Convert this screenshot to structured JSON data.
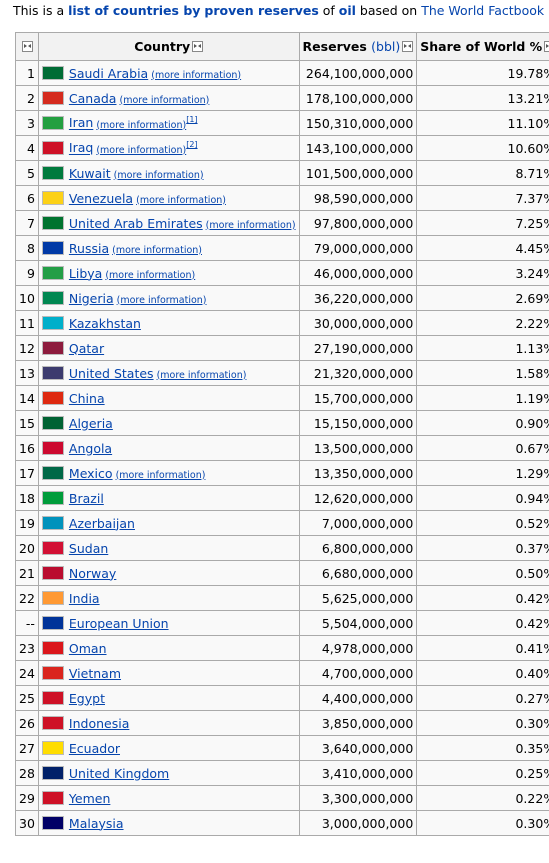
{
  "intro": {
    "prefix": "This is a ",
    "link1": "list of countries by",
    "link2": "proven reserves",
    "mid": " of ",
    "link3": "oil",
    "mid2": " based on ",
    "link4": "The World Factbook"
  },
  "headers": {
    "country": "Country",
    "reserves_bold": "Reserves",
    "reserves_unit": "(bbl)",
    "share": "Share of World %"
  },
  "more_label": "(more information)",
  "rows": [
    {
      "rank": "1",
      "country": "Saudi Arabia",
      "more": true,
      "note": "",
      "reserves": "264,100,000,000",
      "share": "19.78%",
      "flag": "sa"
    },
    {
      "rank": "2",
      "country": "Canada",
      "more": true,
      "note": "",
      "reserves": "178,100,000,000",
      "share": "13.21%",
      "flag": "ca"
    },
    {
      "rank": "3",
      "country": "Iran",
      "more": true,
      "note": "[1]",
      "reserves": "150,310,000,000",
      "share": "11.10%",
      "flag": "ir"
    },
    {
      "rank": "4",
      "country": "Iraq",
      "more": true,
      "note": "[2]",
      "reserves": "143,100,000,000",
      "share": "10.60%",
      "flag": "iq"
    },
    {
      "rank": "5",
      "country": "Kuwait",
      "more": true,
      "note": "",
      "reserves": "101,500,000,000",
      "share": "8.71%",
      "flag": "kw"
    },
    {
      "rank": "6",
      "country": "Venezuela",
      "more": true,
      "note": "",
      "reserves": "98,590,000,000",
      "share": "7.37%",
      "flag": "ve"
    },
    {
      "rank": "7",
      "country": "United Arab Emirates",
      "more": true,
      "note": "",
      "reserves": "97,800,000,000",
      "share": "7.25%",
      "flag": "ae"
    },
    {
      "rank": "8",
      "country": "Russia",
      "more": true,
      "note": "",
      "reserves": "79,000,000,000",
      "share": "4.45%",
      "flag": "ru"
    },
    {
      "rank": "9",
      "country": "Libya",
      "more": true,
      "note": "",
      "reserves": "46,000,000,000",
      "share": "3.24%",
      "flag": "ly"
    },
    {
      "rank": "10",
      "country": "Nigeria",
      "more": true,
      "note": "",
      "reserves": "36,220,000,000",
      "share": "2.69%",
      "flag": "ng"
    },
    {
      "rank": "11",
      "country": "Kazakhstan",
      "more": false,
      "note": "",
      "reserves": "30,000,000,000",
      "share": "2.22%",
      "flag": "kz"
    },
    {
      "rank": "12",
      "country": "Qatar",
      "more": false,
      "note": "",
      "reserves": "27,190,000,000",
      "share": "1.13%",
      "flag": "qa"
    },
    {
      "rank": "13",
      "country": "United States",
      "more": true,
      "note": "",
      "reserves": "21,320,000,000",
      "share": "1.58%",
      "flag": "us"
    },
    {
      "rank": "14",
      "country": "China",
      "more": false,
      "note": "",
      "reserves": "15,700,000,000",
      "share": "1.19%",
      "flag": "cn"
    },
    {
      "rank": "15",
      "country": "Algeria",
      "more": false,
      "note": "",
      "reserves": "15,150,000,000",
      "share": "0.90%",
      "flag": "dz"
    },
    {
      "rank": "16",
      "country": "Angola",
      "more": false,
      "note": "",
      "reserves": "13,500,000,000",
      "share": "0.67%",
      "flag": "ao"
    },
    {
      "rank": "17",
      "country": "Mexico",
      "more": true,
      "note": "",
      "reserves": "13,350,000,000",
      "share": "1.29%",
      "flag": "mx"
    },
    {
      "rank": "18",
      "country": "Brazil",
      "more": false,
      "note": "",
      "reserves": "12,620,000,000",
      "share": "0.94%",
      "flag": "br"
    },
    {
      "rank": "19",
      "country": "Azerbaijan",
      "more": false,
      "note": "",
      "reserves": "7,000,000,000",
      "share": "0.52%",
      "flag": "az"
    },
    {
      "rank": "20",
      "country": "Sudan",
      "more": false,
      "note": "",
      "reserves": "6,800,000,000",
      "share": "0.37%",
      "flag": "sd"
    },
    {
      "rank": "21",
      "country": "Norway",
      "more": false,
      "note": "",
      "reserves": "6,680,000,000",
      "share": "0.50%",
      "flag": "no"
    },
    {
      "rank": "22",
      "country": "India",
      "more": false,
      "note": "",
      "reserves": "5,625,000,000",
      "share": "0.42%",
      "flag": "in"
    },
    {
      "rank": "--",
      "country": "European Union",
      "more": false,
      "note": "",
      "reserves": "5,504,000,000",
      "share": "0.42%",
      "flag": "eu"
    },
    {
      "rank": "23",
      "country": "Oman",
      "more": false,
      "note": "",
      "reserves": "4,978,000,000",
      "share": "0.41%",
      "flag": "om"
    },
    {
      "rank": "24",
      "country": "Vietnam",
      "more": false,
      "note": "",
      "reserves": "4,700,000,000",
      "share": "0.40%",
      "flag": "vn"
    },
    {
      "rank": "25",
      "country": "Egypt",
      "more": false,
      "note": "",
      "reserves": "4,400,000,000",
      "share": "0.27%",
      "flag": "eg"
    },
    {
      "rank": "26",
      "country": "Indonesia",
      "more": false,
      "note": "",
      "reserves": "3,850,000,000",
      "share": "0.30%",
      "flag": "id"
    },
    {
      "rank": "27",
      "country": "Ecuador",
      "more": false,
      "note": "",
      "reserves": "3,640,000,000",
      "share": "0.35%",
      "flag": "ec"
    },
    {
      "rank": "28",
      "country": "United Kingdom",
      "more": false,
      "note": "",
      "reserves": "3,410,000,000",
      "share": "0.25%",
      "flag": "gb"
    },
    {
      "rank": "29",
      "country": "Yemen",
      "more": false,
      "note": "",
      "reserves": "3,300,000,000",
      "share": "0.22%",
      "flag": "ye"
    },
    {
      "rank": "30",
      "country": "Malaysia",
      "more": false,
      "note": "",
      "reserves": "3,000,000,000",
      "share": "0.30%",
      "flag": "my"
    }
  ],
  "flag_colors": {
    "sa": "#006c35",
    "ca": "#d52b1e",
    "ir": "#239f40",
    "iq": "#ce1126",
    "kw": "#007a3d",
    "ve": "#fcd116",
    "ae": "#00732f",
    "ru": "#0039a6",
    "ly": "#239e46",
    "ng": "#008751",
    "kz": "#00afca",
    "qa": "#8d1b3d",
    "us": "#3c3b6e",
    "cn": "#de2910",
    "dz": "#006233",
    "ao": "#cc092f",
    "mx": "#006847",
    "br": "#009c3b",
    "az": "#0092bc",
    "sd": "#d21034",
    "no": "#ba0c2f",
    "in": "#ff9933",
    "eu": "#003399",
    "om": "#db161b",
    "vn": "#da251d",
    "eg": "#ce1126",
    "id": "#ce1126",
    "ec": "#ffdd00",
    "gb": "#012169",
    "ye": "#ce1126",
    "my": "#010066"
  }
}
